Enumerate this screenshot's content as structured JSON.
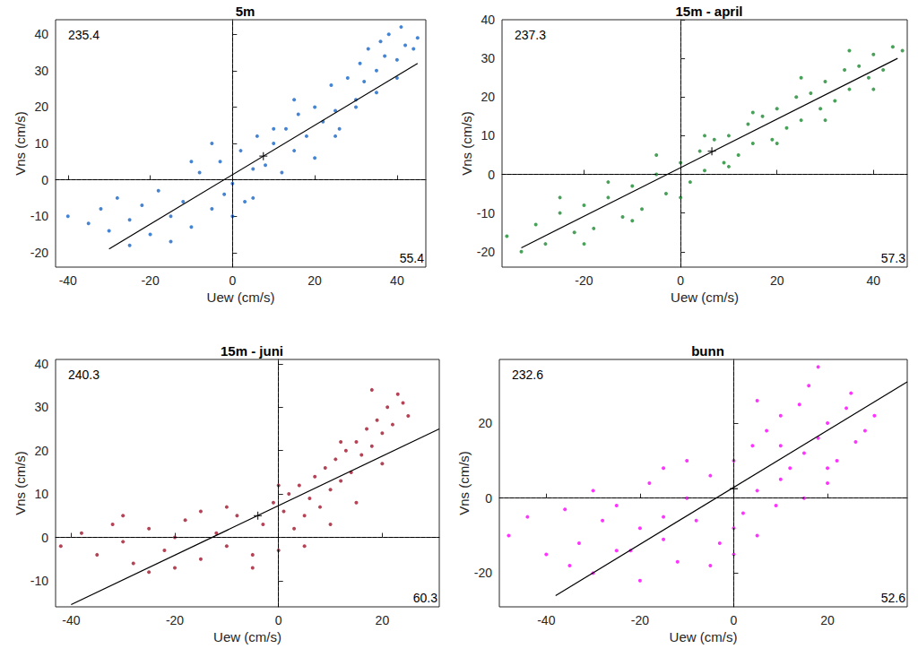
{
  "chart_data": [
    {
      "type": "scatter",
      "title": "5m",
      "x_label": "Uew (cm/s)",
      "y_label": "Vns (cm/s)",
      "annotations": [
        "235.4",
        "55.4"
      ],
      "xlim": [
        -43,
        47
      ],
      "xticks": [
        -40,
        -20,
        0,
        20,
        40
      ],
      "ylim": [
        -24,
        44
      ],
      "yticks": [
        -20,
        -10,
        0,
        10,
        20,
        30,
        40
      ],
      "grid": false,
      "series": [
        {
          "type": "scatter",
          "marker": "circle",
          "color": "#1565c8",
          "x": [
            -40,
            -35,
            -32,
            -30,
            -28,
            -25,
            -22,
            -20,
            -18,
            -15,
            -12,
            -10,
            -8,
            -5,
            -3,
            -2,
            0,
            2,
            3,
            5,
            6,
            8,
            10,
            12,
            13,
            15,
            16,
            18,
            20,
            22,
            24,
            25,
            26,
            28,
            30,
            31,
            32,
            33,
            35,
            36,
            37,
            38,
            40,
            41,
            42,
            44,
            45,
            -25,
            -15,
            -10,
            -5,
            0,
            5,
            10,
            15,
            20,
            25,
            30,
            35,
            40
          ],
          "y": [
            -10,
            -12,
            -8,
            -14,
            -5,
            -11,
            -7,
            -15,
            -3,
            -10,
            -6,
            -13,
            2,
            -8,
            5,
            -4,
            -1,
            8,
            -6,
            3,
            12,
            4,
            10,
            2,
            14,
            8,
            18,
            12,
            20,
            16,
            26,
            19,
            14,
            28,
            22,
            32,
            27,
            36,
            30,
            38,
            34,
            40,
            33,
            42,
            37,
            36,
            39,
            -18,
            -17,
            5,
            10,
            -10,
            -5,
            14,
            22,
            6,
            12,
            20,
            24,
            28
          ]
        },
        {
          "type": "line",
          "line_style": "solid",
          "color": "#000000",
          "x": [
            -30,
            45
          ],
          "y": [
            -19,
            32
          ]
        },
        {
          "type": "scatter",
          "marker": "cross",
          "color": "#000000",
          "x": [
            7.5
          ],
          "y": [
            6.5
          ]
        }
      ]
    },
    {
      "type": "scatter",
      "title": "15m - april",
      "x_label": "Uew (cm/s)",
      "y_label": "Vns (cm/s)",
      "annotations": [
        "237.3",
        "57.3"
      ],
      "xlim": [
        -37,
        47
      ],
      "xticks": [
        -20,
        0,
        20,
        40
      ],
      "ylim": [
        -24,
        40
      ],
      "yticks": [
        -20,
        -10,
        0,
        10,
        20,
        30,
        40
      ],
      "grid": false,
      "series": [
        {
          "type": "scatter",
          "marker": "circle",
          "color": "#1a8a2e",
          "x": [
            -36,
            -33,
            -30,
            -28,
            -25,
            -22,
            -20,
            -18,
            -15,
            -12,
            -10,
            -8,
            -5,
            -3,
            0,
            2,
            4,
            5,
            7,
            9,
            10,
            12,
            14,
            15,
            17,
            19,
            20,
            22,
            24,
            25,
            27,
            29,
            30,
            32,
            34,
            35,
            37,
            39,
            40,
            42,
            44,
            46,
            -20,
            -10,
            0,
            10,
            20,
            30,
            40,
            -25,
            -15,
            -5,
            5,
            15,
            25,
            35
          ],
          "y": [
            -16,
            -20,
            -13,
            -18,
            -10,
            -15,
            -8,
            -14,
            -6,
            -11,
            -3,
            -9,
            0,
            -5,
            3,
            -2,
            6,
            1,
            9,
            3,
            10,
            5,
            13,
            8,
            15,
            9,
            17,
            12,
            20,
            14,
            21,
            17,
            24,
            19,
            27,
            22,
            28,
            25,
            31,
            27,
            33,
            32,
            -18,
            -12,
            -6,
            2,
            8,
            14,
            22,
            -6,
            -2,
            5,
            10,
            16,
            25,
            32
          ]
        },
        {
          "type": "line",
          "line_style": "solid",
          "color": "#000000",
          "x": [
            -33,
            45
          ],
          "y": [
            -19,
            30
          ]
        },
        {
          "type": "scatter",
          "marker": "cross",
          "color": "#000000",
          "x": [
            6.5
          ],
          "y": [
            6
          ]
        }
      ]
    },
    {
      "type": "scatter",
      "title": "15m - juni",
      "x_label": "Uew (cm/s)",
      "y_label": "Vns (cm/s)",
      "annotations": [
        "240.3",
        "60.3"
      ],
      "xlim": [
        -43,
        31
      ],
      "xticks": [
        -40,
        -20,
        0,
        20
      ],
      "ylim": [
        -16,
        41
      ],
      "yticks": [
        -10,
        0,
        10,
        20,
        30,
        40
      ],
      "grid": false,
      "series": [
        {
          "type": "scatter",
          "marker": "circle",
          "color": "#a0142a",
          "x": [
            -42,
            -38,
            -35,
            -32,
            -30,
            -28,
            -25,
            -22,
            -20,
            -18,
            -15,
            -12,
            -10,
            -8,
            -5,
            -3,
            -1,
            0,
            1,
            2,
            3,
            4,
            5,
            6,
            7,
            8,
            9,
            10,
            11,
            12,
            13,
            14,
            15,
            16,
            17,
            18,
            19,
            20,
            21,
            22,
            23,
            24,
            -30,
            -20,
            -10,
            -25,
            -15,
            -5,
            0,
            5,
            10,
            15,
            20,
            25,
            12,
            18
          ],
          "y": [
            -2,
            1,
            -4,
            3,
            -1,
            -6,
            2,
            -3,
            0,
            4,
            -5,
            1,
            -2,
            5,
            -4,
            3,
            8,
            -3,
            6,
            10,
            2,
            12,
            5,
            9,
            14,
            7,
            16,
            11,
            18,
            13,
            20,
            15,
            22,
            19,
            25,
            21,
            27,
            24,
            30,
            26,
            33,
            31,
            5,
            -7,
            7,
            -8,
            6,
            -7,
            12,
            -2,
            3,
            8,
            17,
            28,
            22,
            34
          ]
        },
        {
          "type": "line",
          "line_style": "solid",
          "color": "#000000",
          "x": [
            -40,
            31
          ],
          "y": [
            -15.5,
            25
          ]
        },
        {
          "type": "scatter",
          "marker": "cross",
          "color": "#000000",
          "x": [
            -4
          ],
          "y": [
            5
          ]
        }
      ]
    },
    {
      "type": "scatter",
      "title": "bunn",
      "x_label": "Uew (cm/s)",
      "y_label": "Vns (cm/s)",
      "annotations": [
        "232.6",
        "52.6"
      ],
      "xlim": [
        -50,
        37
      ],
      "xticks": [
        -40,
        -20,
        0,
        20
      ],
      "ylim": [
        -29,
        37
      ],
      "yticks": [
        -20,
        0,
        20
      ],
      "grid": false,
      "series": [
        {
          "type": "scatter",
          "marker": "circle",
          "color": "#ff00ff",
          "x": [
            -48,
            -44,
            -40,
            -36,
            -33,
            -30,
            -28,
            -25,
            -22,
            -20,
            -18,
            -15,
            -12,
            -10,
            -8,
            -5,
            -3,
            0,
            2,
            4,
            5,
            7,
            9,
            10,
            12,
            14,
            15,
            16,
            18,
            20,
            22,
            24,
            26,
            28,
            30,
            -35,
            -25,
            -15,
            -5,
            0,
            5,
            10,
            15,
            20,
            25,
            -20,
            -10,
            0,
            10,
            20,
            -30,
            -15,
            5,
            18
          ],
          "y": [
            -10,
            -5,
            -15,
            -3,
            -12,
            -20,
            -6,
            -2,
            -14,
            -8,
            4,
            -11,
            -17,
            0,
            -6,
            6,
            -12,
            10,
            -4,
            14,
            2,
            18,
            -2,
            22,
            8,
            25,
            12,
            30,
            16,
            20,
            10,
            24,
            15,
            18,
            22,
            -18,
            -14,
            -5,
            -18,
            -8,
            -10,
            5,
            0,
            8,
            28,
            -22,
            10,
            -15,
            14,
            4,
            2,
            8,
            26,
            35
          ]
        },
        {
          "type": "line",
          "line_style": "solid",
          "color": "#000000",
          "x": [
            -38,
            37
          ],
          "y": [
            -26,
            31
          ]
        },
        {
          "type": "scatter",
          "marker": "cross",
          "color": "#000000",
          "x": [
            0
          ],
          "y": [
            2.5
          ]
        }
      ]
    }
  ]
}
